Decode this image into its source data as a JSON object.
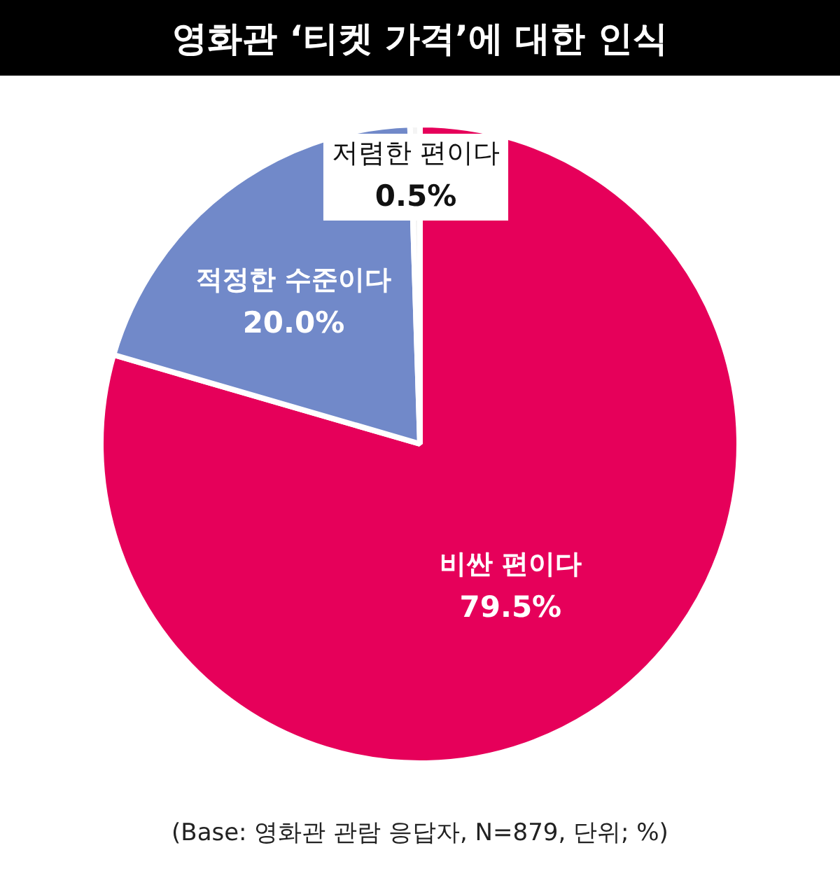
{
  "chart_data": {
    "type": "pie",
    "title": "영화관 ‘티켓 가격’에 대한 인식",
    "categories": [
      "비싼 편이다",
      "적정한 수준이다",
      "저렴한 편이다"
    ],
    "values": [
      79.5,
      20.0,
      0.5
    ],
    "colors": [
      "#e6005a",
      "#7189c9",
      "#f4f4f4"
    ],
    "value_labels": [
      "79.5%",
      "20.0%",
      "0.5%"
    ],
    "legend": false,
    "annotations": [
      "(Base: 영화관 관람 응답자, N=879, 단위; %)"
    ]
  }
}
